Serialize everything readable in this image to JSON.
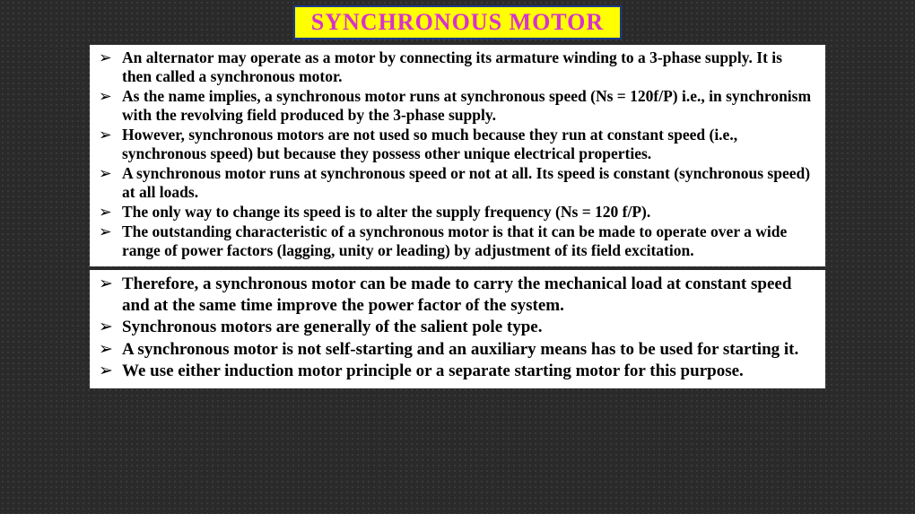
{
  "title": {
    "text": "SYNCHRONOUS MOTOR",
    "fontsize": 26,
    "color": "#d633cc",
    "background": "#ffff00",
    "border_color": "#1a3a8a"
  },
  "background": {
    "base": "#2a2a2a",
    "dot_color": "#404040"
  },
  "block1": {
    "background": "#ffffff",
    "text_color": "#000000",
    "fontsize": 17.5,
    "items": [
      "An alternator may operate as a motor by connecting its armature winding to a 3-phase supply. It is then called a synchronous motor.",
      "As the name implies, a synchronous motor runs at synchronous speed (Ns = 120f/P) i.e., in synchronism with the revolving field produced by the 3-phase supply.",
      "However, synchronous motors are not used so much because they run at constant speed (i.e., synchronous speed) but because they possess other unique electrical properties.",
      "A synchronous motor runs at synchronous speed or not at all. Its speed is constant (synchronous speed) at all loads.",
      "The only way to change its speed is to alter the supply frequency (Ns = 120 f/P).",
      "The outstanding characteristic of a synchronous motor is that it can be made to operate over a wide range of power factors (lagging, unity or leading) by adjustment of its field excitation."
    ]
  },
  "block2": {
    "background": "#ffffff",
    "text_color": "#000000",
    "fontsize": 19,
    "items": [
      "Therefore, a synchronous motor can be made to carry the mechanical load at constant speed and at the same time improve the power factor of the system.",
      "Synchronous motors are generally of the salient pole type.",
      "A synchronous motor is not self-starting and an auxiliary means has to be used for starting it.",
      "We use either induction motor principle or a separate starting motor for this purpose."
    ]
  }
}
